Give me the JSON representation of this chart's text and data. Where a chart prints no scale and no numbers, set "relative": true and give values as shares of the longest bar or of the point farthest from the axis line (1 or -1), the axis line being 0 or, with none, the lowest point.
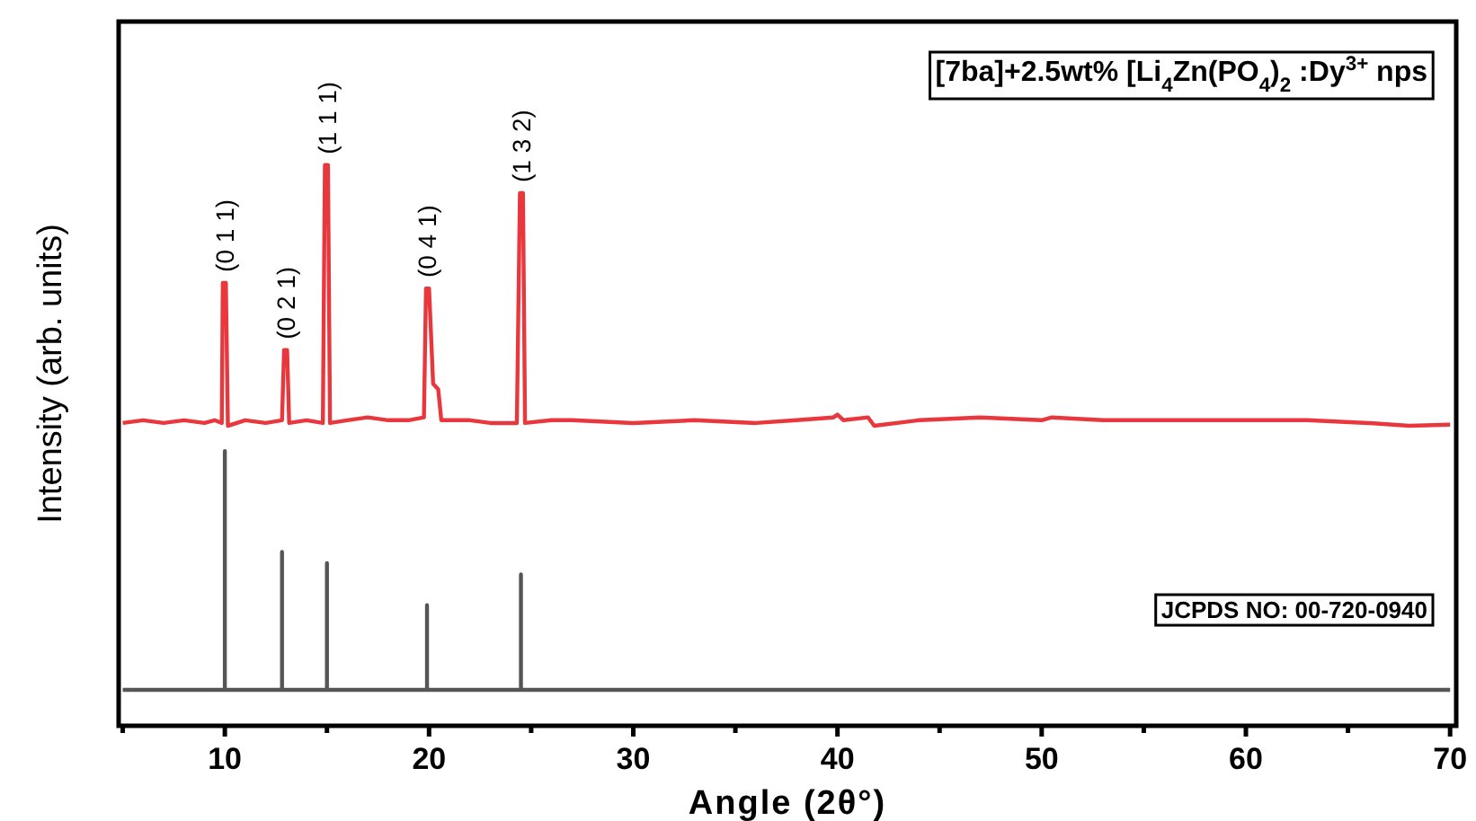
{
  "chart_data": {
    "type": "line",
    "relative": true,
    "xlabel": "Angle (2θ°)",
    "ylabel": "Intensity (arb. units)",
    "xlim": [
      4.8,
      70.3
    ],
    "xticks": [
      {
        "value": 5,
        "label": null
      },
      10,
      {
        "value": 15,
        "label": null
      },
      20,
      {
        "value": 25,
        "label": null
      },
      30,
      {
        "value": 35,
        "label": null
      },
      40,
      {
        "value": 45,
        "label": null
      },
      50,
      {
        "value": 55,
        "label": null
      },
      60,
      {
        "value": 65,
        "label": null
      },
      70
    ],
    "grid": false,
    "line_style": "solid",
    "series": [
      {
        "name": "[7ba]+2.5wt% [Li$_{4}$Zn(PO$_{4}$)$_{2}$ :Dy$^{3+}$ nps",
        "color": "#e8383d",
        "x": [
          5,
          6,
          7,
          8,
          9,
          9.5,
          9.85,
          9.9,
          10.05,
          10.15,
          11,
          12,
          12.8,
          12.9,
          13.05,
          13.15,
          14,
          14.8,
          14.9,
          15.05,
          15.15,
          16,
          17,
          18,
          19,
          19.75,
          19.85,
          20.0,
          20.2,
          20.45,
          20.6,
          22,
          23,
          24.3,
          24.45,
          24.6,
          24.7,
          26,
          27,
          30,
          33,
          36,
          38,
          39.8,
          40,
          40.3,
          41.5,
          41.8,
          44,
          47,
          50,
          50.5,
          53,
          56,
          60,
          63,
          66,
          68,
          70
        ],
        "values": [
          0.54,
          0.545,
          0.54,
          0.545,
          0.54,
          0.545,
          0.54,
          0.79,
          0.79,
          0.535,
          0.545,
          0.54,
          0.545,
          0.67,
          0.67,
          0.54,
          0.545,
          0.54,
          1,
          1,
          0.54,
          0.545,
          0.55,
          0.545,
          0.545,
          0.55,
          0.78,
          0.78,
          0.61,
          0.6,
          0.545,
          0.545,
          0.54,
          0.54,
          0.95,
          0.95,
          0.54,
          0.545,
          0.545,
          0.54,
          0.545,
          0.54,
          0.545,
          0.55,
          0.555,
          0.545,
          0.55,
          0.535,
          0.545,
          0.55,
          0.545,
          0.55,
          0.545,
          0.545,
          0.545,
          0.545,
          0.54,
          0.535,
          0.537
        ]
      },
      {
        "name": "JCPDS NO: 00-720-0940",
        "color": "#555555",
        "x": [
          5,
          10,
          10,
          10,
          12.8,
          12.8,
          12.8,
          15,
          15,
          15,
          19.9,
          19.9,
          19.9,
          24.5,
          24.5,
          24.5,
          70
        ],
        "values": [
          0.064,
          0.064,
          0.49,
          0.064,
          0.064,
          0.31,
          0.064,
          0.064,
          0.29,
          0.064,
          0.064,
          0.215,
          0.064,
          0.064,
          0.27,
          0.064,
          0.064
        ]
      }
    ],
    "annotations": [
      {
        "text": "(0 1 1)",
        "x": 10,
        "y": 0.79
      },
      {
        "text": "(0 2 1)",
        "x": 13,
        "y": 0.67
      },
      {
        "text": "(1 1 1)",
        "x": 15,
        "y": 1
      },
      {
        "text": "(0 4 1)",
        "x": 19.9,
        "y": 0.78
      },
      {
        "text": "(1 3 2)",
        "x": 24.5,
        "y": 0.95
      }
    ]
  }
}
